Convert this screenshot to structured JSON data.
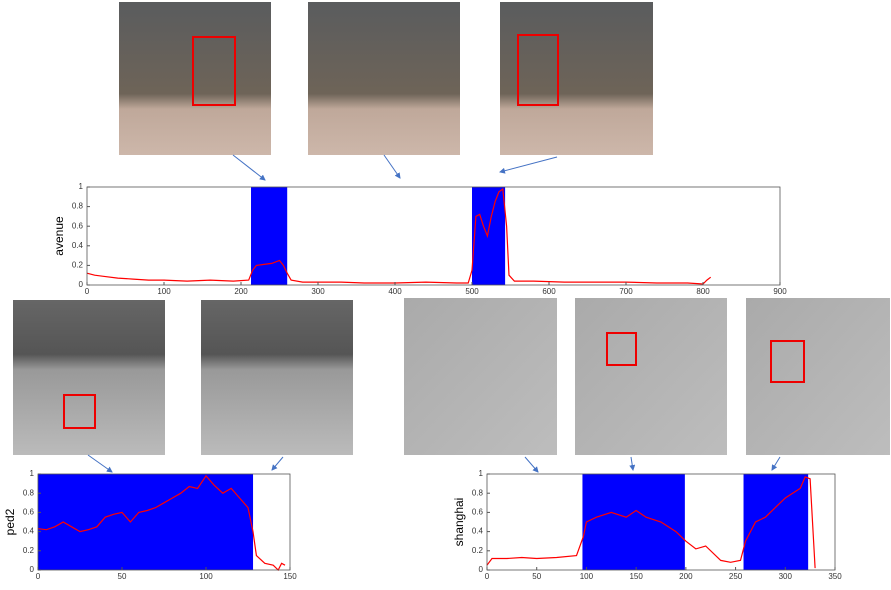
{
  "chart_data": [
    {
      "type": "line",
      "y_label": "avenue",
      "x": [
        0,
        10,
        20,
        40,
        60,
        80,
        100,
        130,
        160,
        190,
        210,
        215,
        220,
        230,
        240,
        250,
        255,
        260,
        265,
        280,
        300,
        330,
        360,
        400,
        440,
        480,
        495,
        500,
        505,
        510,
        515,
        520,
        525,
        530,
        535,
        540,
        545,
        548,
        555,
        580,
        620,
        660,
        700,
        740,
        780,
        800,
        805,
        810
      ],
      "values": [
        0.12,
        0.1,
        0.09,
        0.07,
        0.06,
        0.05,
        0.05,
        0.04,
        0.05,
        0.04,
        0.05,
        0.15,
        0.2,
        0.21,
        0.22,
        0.25,
        0.2,
        0.12,
        0.05,
        0.03,
        0.03,
        0.03,
        0.02,
        0.02,
        0.03,
        0.02,
        0.02,
        0.15,
        0.7,
        0.72,
        0.6,
        0.5,
        0.7,
        0.85,
        0.95,
        0.98,
        0.6,
        0.1,
        0.04,
        0.04,
        0.03,
        0.03,
        0.03,
        0.02,
        0.02,
        0.01,
        0.05,
        0.08
      ],
      "color": "#ff0000",
      "highlight_spans": [
        [
          213,
          260
        ],
        [
          500,
          543
        ]
      ],
      "highlight_color": "#0000ff",
      "xlim": [
        0,
        900
      ],
      "xticks": [
        0,
        100,
        200,
        300,
        400,
        500,
        600,
        700,
        800,
        900
      ],
      "ylim": [
        0,
        1
      ],
      "yticks": [
        0,
        0.2,
        0.4,
        0.6,
        0.8,
        1
      ]
    },
    {
      "type": "line",
      "y_label": "ped2",
      "x": [
        0,
        5,
        10,
        15,
        20,
        25,
        30,
        35,
        40,
        45,
        50,
        55,
        60,
        65,
        70,
        75,
        80,
        85,
        90,
        95,
        100,
        105,
        110,
        115,
        120,
        125,
        128,
        130,
        135,
        140,
        143,
        145,
        147
      ],
      "values": [
        0.43,
        0.42,
        0.45,
        0.5,
        0.45,
        0.4,
        0.42,
        0.45,
        0.55,
        0.58,
        0.6,
        0.5,
        0.6,
        0.62,
        0.65,
        0.7,
        0.75,
        0.8,
        0.87,
        0.85,
        0.98,
        0.88,
        0.8,
        0.85,
        0.75,
        0.65,
        0.4,
        0.15,
        0.07,
        0.05,
        0,
        0.07,
        0.05
      ],
      "color": "#ff0000",
      "highlight_spans": [
        [
          0,
          128
        ]
      ],
      "highlight_color": "#0000ff",
      "xlim": [
        0,
        150
      ],
      "xticks": [
        0,
        50,
        100,
        150
      ],
      "ylim": [
        0,
        1
      ],
      "yticks": [
        0,
        0.2,
        0.4,
        0.6,
        0.8,
        1
      ]
    },
    {
      "type": "line",
      "y_label": "shanghai",
      "x": [
        0,
        5,
        20,
        35,
        50,
        70,
        90,
        97,
        100,
        110,
        125,
        140,
        150,
        160,
        175,
        190,
        200,
        210,
        220,
        235,
        245,
        255,
        260,
        270,
        280,
        290,
        300,
        315,
        320,
        325,
        330
      ],
      "values": [
        0.05,
        0.12,
        0.12,
        0.13,
        0.12,
        0.13,
        0.15,
        0.35,
        0.5,
        0.55,
        0.6,
        0.55,
        0.62,
        0.55,
        0.5,
        0.4,
        0.3,
        0.22,
        0.25,
        0.1,
        0.08,
        0.1,
        0.3,
        0.5,
        0.55,
        0.65,
        0.75,
        0.85,
        0.97,
        0.95,
        0.02
      ],
      "color": "#ff0000",
      "highlight_spans": [
        [
          96,
          199
        ],
        [
          258,
          323
        ]
      ],
      "highlight_color": "#0000ff",
      "xlim": [
        0,
        350
      ],
      "xticks": [
        0,
        50,
        100,
        150,
        200,
        250,
        300,
        350
      ],
      "ylim": [
        0,
        1
      ],
      "yticks": [
        0,
        0.2,
        0.4,
        0.6,
        0.8,
        1
      ]
    }
  ]
}
